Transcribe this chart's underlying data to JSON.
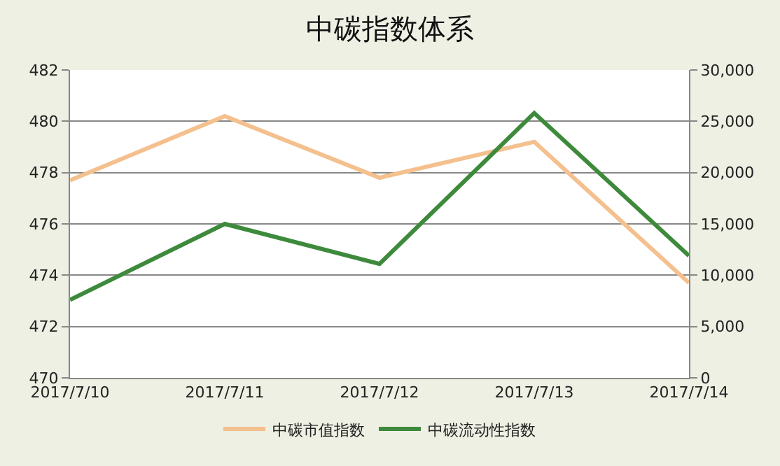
{
  "chart_data": {
    "type": "line",
    "title": "中碳指数体系",
    "categories": [
      "2017/7/10",
      "2017/7/11",
      "2017/7/12",
      "2017/7/13",
      "2017/7/14"
    ],
    "series": [
      {
        "name": "中碳市值指数",
        "color": "#f4c08e",
        "values": [
          477.7,
          480.2,
          477.8,
          479.2,
          473.7
        ]
      },
      {
        "name": "中碳流动性指数",
        "color": "#3e8a3c",
        "values": [
          7600,
          15000,
          11100,
          25800,
          11900
        ],
        "axis": "y2"
      }
    ],
    "ylim": [
      470,
      482
    ],
    "yticks": [
      470,
      472,
      474,
      476,
      478,
      480,
      482
    ],
    "y2lim": [
      0,
      30000
    ],
    "y2ticks": [
      {
        "value": 0,
        "label": "0"
      },
      {
        "value": 5000,
        "label": "5,000"
      },
      {
        "value": 10000,
        "label": "10,000"
      },
      {
        "value": 15000,
        "label": "15,000"
      },
      {
        "value": 20000,
        "label": "20,000"
      },
      {
        "value": 25000,
        "label": "25,000"
      },
      {
        "value": 30000,
        "label": "30,000"
      }
    ],
    "grid": "y",
    "legend": "bottom",
    "marker": "none",
    "line_style": "solid"
  }
}
